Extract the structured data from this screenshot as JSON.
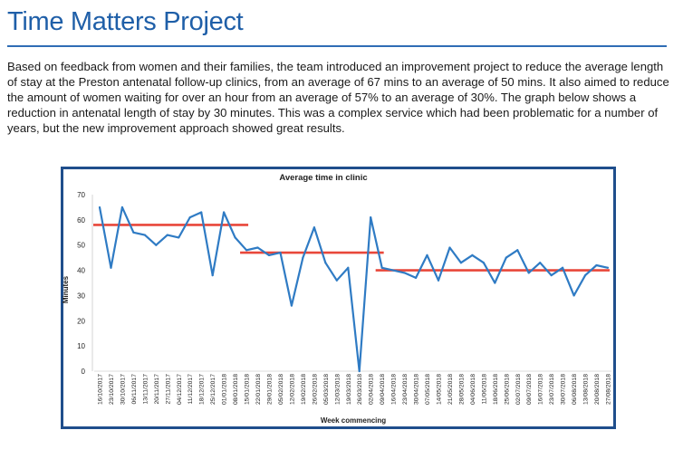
{
  "page": {
    "title": "Time Matters Project",
    "paragraph": "Based on feedback from women and their families, the team introduced an improvement project to reduce the average length of stay at the Preston antenatal follow-up clinics, from an average of 67 mins to an average of 50 mins. It also aimed to reduce the amount of women waiting for over an hour from an average of 57% to an average of 30%. The graph below shows a reduction in antenatal length of stay by 30 minutes. This was a complex service which had been problematic for a number of years, but the new improvement approach showed great results."
  },
  "colors": {
    "title": "#1f5fa8",
    "line": "#2f7bc4",
    "mean": "#e8473a",
    "frame": "#1f4e8c"
  },
  "chart_data": {
    "type": "line",
    "title": "Average time in clinic",
    "xlabel": "Week commencing",
    "ylabel": "Minutes",
    "ylim": [
      0,
      70
    ],
    "yticks": [
      0,
      10,
      20,
      30,
      40,
      50,
      60,
      70
    ],
    "grid": false,
    "categories": [
      "16/10/2017",
      "23/10/2017",
      "30/10/2017",
      "06/11/2017",
      "13/11/2017",
      "20/11/2017",
      "27/11/2017",
      "04/12/2017",
      "11/12/2017",
      "18/12/2017",
      "25/12/2017",
      "01/01/2018",
      "08/01/2018",
      "15/01/2018",
      "22/01/2018",
      "29/01/2018",
      "05/02/2018",
      "12/02/2018",
      "19/02/2018",
      "26/02/2018",
      "05/03/2018",
      "12/03/2018",
      "19/03/2018",
      "26/03/2018",
      "02/04/2018",
      "09/04/2018",
      "16/04/2018",
      "23/04/2018",
      "30/04/2018",
      "07/05/2018",
      "14/05/2018",
      "21/05/2018",
      "28/05/2018",
      "04/06/2018",
      "11/06/2018",
      "18/06/2018",
      "25/06/2018",
      "02/07/2018",
      "09/07/2018",
      "16/07/2018",
      "23/07/2018",
      "30/07/2018",
      "06/08/2018",
      "13/08/2018",
      "20/08/2018",
      "27/08/2018"
    ],
    "series": [
      {
        "values": [
          65,
          41,
          65,
          55,
          54,
          50,
          54,
          53,
          61,
          63,
          38,
          63,
          53,
          48,
          49,
          46,
          47,
          26,
          45,
          57,
          43,
          36,
          41,
          0,
          61,
          41,
          40,
          39,
          37,
          46,
          36,
          49,
          43,
          46,
          43,
          35,
          45,
          48,
          39,
          43,
          38,
          41,
          30,
          38,
          42,
          41
        ]
      }
    ],
    "mean_lines": [
      {
        "value": 58,
        "from": "16/10/2017",
        "to": "15/01/2018"
      },
      {
        "value": 47,
        "from": "15/01/2018",
        "to": "09/04/2018"
      },
      {
        "value": 40,
        "from": "09/04/2018",
        "to": "27/08/2018"
      }
    ]
  }
}
